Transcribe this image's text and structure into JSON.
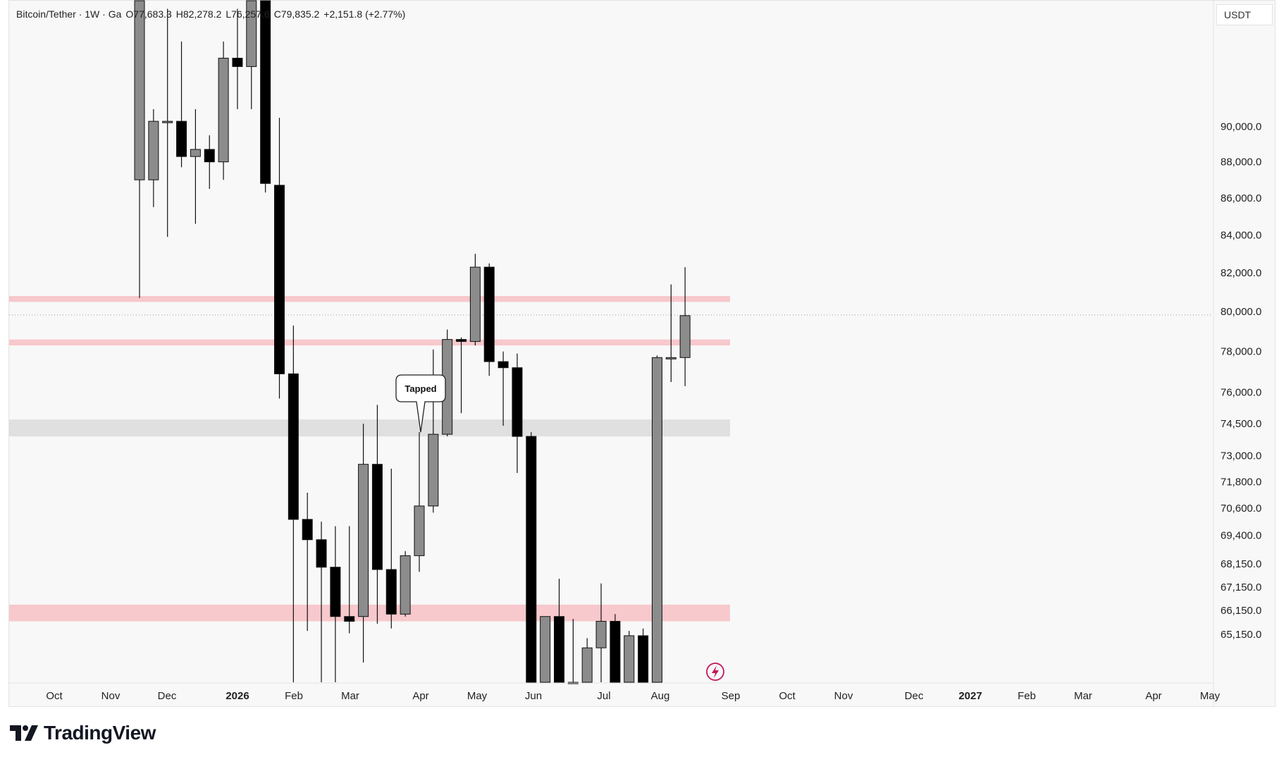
{
  "header": {
    "pair": "Bitcoin/Tether · 1W · Ga",
    "open": "O77,683.3",
    "high": "H82,278.2",
    "low": "L76,257.6",
    "close": "C79,835.2",
    "change": "+2,151.8 (+2.77%)"
  },
  "currency": "USDT",
  "brand": "TradingView",
  "colors": {
    "bull_candle": "#8c8c8c",
    "bear_candle": "#000000",
    "zone_red": "#f7c8cc",
    "zone_grey": "#e0e0e0",
    "background": "#f8f8f8"
  },
  "chart_data": {
    "type": "candlestick",
    "y_axis": {
      "scale": "log",
      "range": [
        63200,
        97500
      ],
      "ticks": [
        "90,000.0",
        "88,000.0",
        "86,000.0",
        "84,000.0",
        "82,000.0",
        "80,000.0",
        "78,000.0",
        "76,000.0",
        "74,500.0",
        "73,000.0",
        "71,800.0",
        "70,600.0",
        "69,400.0",
        "68,150.0",
        "67,150.0",
        "66,150.0",
        "65,150.0"
      ],
      "tick_values": [
        90000,
        88000,
        86000,
        84000,
        82000,
        80000,
        78000,
        76000,
        74500,
        73000,
        71800,
        70600,
        69400,
        68150,
        67150,
        66150,
        65150
      ]
    },
    "x_axis": {
      "labels": [
        "Oct",
        "Nov",
        "Dec",
        "2026",
        "Feb",
        "Mar",
        "Apr",
        "May",
        "Jun",
        "Jul",
        "Aug",
        "Sep",
        "Oct",
        "Nov",
        "Dec",
        "2027",
        "Feb",
        "Mar",
        "Apr",
        "May"
      ],
      "bold": [
        false,
        false,
        false,
        true,
        false,
        false,
        false,
        false,
        false,
        false,
        false,
        false,
        false,
        false,
        false,
        true,
        false,
        false,
        false,
        false
      ]
    },
    "current_price_line": 79835.2,
    "zones": [
      {
        "low": 80500,
        "high": 80800,
        "color": "red"
      },
      {
        "low": 78300,
        "high": 78600,
        "color": "red"
      },
      {
        "low": 73900,
        "high": 74700,
        "color": "grey"
      },
      {
        "low": 65700,
        "high": 66400,
        "color": "red"
      }
    ],
    "annotation": {
      "text": "Tapped",
      "price": 74100
    },
    "candles": [
      {
        "o": 87000,
        "h": 98000,
        "l": 80700,
        "c": 98000
      },
      {
        "o": 87000,
        "h": 91000,
        "l": 85500,
        "c": 90300
      },
      {
        "o": 90300,
        "h": 97000,
        "l": 83900,
        "c": 90300
      },
      {
        "o": 90300,
        "h": 95000,
        "l": 87700,
        "c": 88300
      },
      {
        "o": 88300,
        "h": 91000,
        "l": 84600,
        "c": 88700
      },
      {
        "o": 88700,
        "h": 89500,
        "l": 86500,
        "c": 88000
      },
      {
        "o": 88000,
        "h": 95000,
        "l": 87000,
        "c": 94000
      },
      {
        "o": 94000,
        "h": 97000,
        "l": 91000,
        "c": 93500
      },
      {
        "o": 93500,
        "h": 98000,
        "l": 91000,
        "c": 98000
      },
      {
        "o": 98000,
        "h": 98000,
        "l": 86300,
        "c": 86800
      },
      {
        "o": 86700,
        "h": 90500,
        "l": 75700,
        "c": 76900
      },
      {
        "o": 76900,
        "h": 79300,
        "l": 62000,
        "c": 70100
      },
      {
        "o": 70100,
        "h": 71300,
        "l": 65300,
        "c": 69200
      },
      {
        "o": 69200,
        "h": 70000,
        "l": 63000,
        "c": 68000
      },
      {
        "o": 68000,
        "h": 69800,
        "l": 63000,
        "c": 65900
      },
      {
        "o": 65900,
        "h": 69800,
        "l": 65200,
        "c": 65700
      },
      {
        "o": 65900,
        "h": 74500,
        "l": 64000,
        "c": 72600
      },
      {
        "o": 72600,
        "h": 75400,
        "l": 65600,
        "c": 67900
      },
      {
        "o": 67900,
        "h": 72400,
        "l": 65400,
        "c": 66000
      },
      {
        "o": 66000,
        "h": 68700,
        "l": 65900,
        "c": 68500
      },
      {
        "o": 68500,
        "h": 74100,
        "l": 67800,
        "c": 70700
      },
      {
        "o": 70700,
        "h": 78100,
        "l": 70400,
        "c": 74000
      },
      {
        "o": 74000,
        "h": 79100,
        "l": 73900,
        "c": 78600
      },
      {
        "o": 78600,
        "h": 78700,
        "l": 75000,
        "c": 78500
      },
      {
        "o": 78500,
        "h": 83000,
        "l": 78300,
        "c": 82300
      },
      {
        "o": 82300,
        "h": 82500,
        "l": 76800,
        "c": 77500
      },
      {
        "o": 77500,
        "h": 78000,
        "l": 74400,
        "c": 77200
      },
      {
        "o": 77200,
        "h": 77900,
        "l": 72200,
        "c": 73900
      },
      {
        "o": 73900,
        "h": 74100,
        "l": 59000,
        "c": 59000
      },
      {
        "o": 59000,
        "h": 65900,
        "l": 59000,
        "c": 65900
      },
      {
        "o": 65900,
        "h": 67500,
        "l": 59000,
        "c": 59000
      },
      {
        "o": 59000,
        "h": 65800,
        "l": 59000,
        "c": 62000
      },
      {
        "o": 62000,
        "h": 65000,
        "l": 59000,
        "c": 64600
      },
      {
        "o": 64600,
        "h": 67300,
        "l": 63000,
        "c": 65700
      },
      {
        "o": 65700,
        "h": 66000,
        "l": 61000,
        "c": 62000
      },
      {
        "o": 62000,
        "h": 65300,
        "l": 59000,
        "c": 65100
      },
      {
        "o": 65100,
        "h": 65400,
        "l": 59000,
        "c": 61000
      },
      {
        "o": 61000,
        "h": 77800,
        "l": 61000,
        "c": 77700
      },
      {
        "o": 77700,
        "h": 81400,
        "l": 76500,
        "c": 77700
      },
      {
        "o": 77700,
        "h": 82300,
        "l": 76300,
        "c": 79800
      }
    ]
  }
}
